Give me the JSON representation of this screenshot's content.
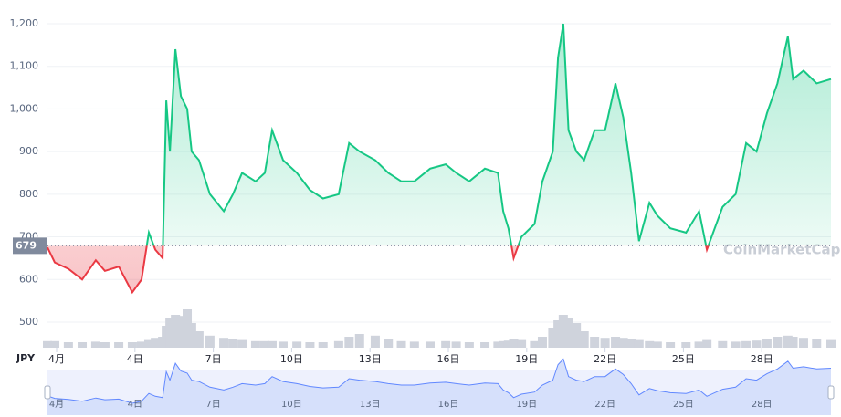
{
  "chart_data": {
    "type": "line",
    "currency": "JPY",
    "watermark": "CoinMarketCap",
    "baseline": 679,
    "colors": {
      "up": "#16c784",
      "down": "#ea3943",
      "volume": "#cfd3dc",
      "navigator": "#6188ff"
    },
    "x": [
      0.65,
      0.93,
      1.45,
      1.98,
      2.5,
      2.85,
      3.38,
      3.9,
      4.25,
      4.53,
      4.78,
      5.06,
      5.2,
      5.34,
      5.55,
      5.76,
      6.0,
      6.17,
      6.45,
      6.87,
      7.4,
      7.75,
      8.1,
      8.62,
      8.97,
      9.25,
      9.67,
      10.2,
      10.7,
      11.2,
      11.8,
      12.2,
      12.6,
      13.2,
      13.7,
      14.2,
      14.7,
      15.3,
      15.9,
      16.3,
      16.8,
      17.4,
      17.9,
      18.1,
      18.3,
      18.5,
      18.8,
      19.3,
      19.6,
      20.0,
      20.2,
      20.4,
      20.6,
      20.9,
      21.2,
      21.6,
      22.0,
      22.4,
      22.7,
      23.0,
      23.3,
      23.7,
      24.0,
      24.5,
      25.1,
      25.6,
      25.9,
      26.5,
      27.0,
      27.4,
      27.8,
      28.2,
      28.6,
      29.0,
      29.2,
      29.6,
      30.1,
      30.65
    ],
    "values": [
      675,
      640,
      625,
      600,
      645,
      620,
      630,
      570,
      600,
      710,
      670,
      650,
      1020,
      900,
      1140,
      1030,
      1000,
      900,
      880,
      800,
      760,
      800,
      850,
      830,
      850,
      950,
      880,
      850,
      810,
      790,
      800,
      920,
      900,
      880,
      850,
      830,
      830,
      860,
      870,
      850,
      830,
      860,
      850,
      760,
      720,
      650,
      700,
      730,
      830,
      900,
      1120,
      1200,
      950,
      900,
      880,
      950,
      950,
      1060,
      980,
      850,
      690,
      780,
      750,
      720,
      710,
      760,
      670,
      770,
      800,
      920,
      900,
      990,
      1060,
      1170,
      1070,
      1090,
      1060,
      1070
    ],
    "volume": [
      12,
      12,
      10,
      10,
      11,
      10,
      10,
      10,
      11,
      14,
      18,
      20,
      40,
      55,
      60,
      58,
      70,
      45,
      30,
      22,
      18,
      15,
      14,
      12,
      12,
      12,
      11,
      11,
      10,
      10,
      12,
      20,
      25,
      22,
      15,
      12,
      11,
      11,
      12,
      11,
      10,
      10,
      11,
      12,
      13,
      16,
      14,
      12,
      20,
      35,
      50,
      60,
      55,
      45,
      30,
      20,
      18,
      20,
      18,
      16,
      14,
      12,
      11,
      10,
      10,
      11,
      14,
      12,
      11,
      12,
      13,
      16,
      20,
      22,
      20,
      18,
      15,
      14
    ],
    "xlim": [
      0.65,
      30.65
    ],
    "xticks": [
      {
        "value": 1,
        "label": "4月"
      },
      {
        "value": 4,
        "label": "4日"
      },
      {
        "value": 7,
        "label": "7日"
      },
      {
        "value": 10,
        "label": "10日"
      },
      {
        "value": 13,
        "label": "13日"
      },
      {
        "value": 16,
        "label": "16日"
      },
      {
        "value": 19,
        "label": "19日"
      },
      {
        "value": 22,
        "label": "22日"
      },
      {
        "value": 25,
        "label": "25日"
      },
      {
        "value": 28,
        "label": "28日"
      }
    ],
    "ylim": [
      440,
      1240
    ],
    "yticks": [
      500,
      600,
      700,
      800,
      900,
      {
        "value": 1000,
        "label": "1,000"
      },
      {
        "value": 1100,
        "label": "1,100"
      },
      {
        "value": 1200,
        "label": "1,200"
      }
    ],
    "grid": true
  }
}
